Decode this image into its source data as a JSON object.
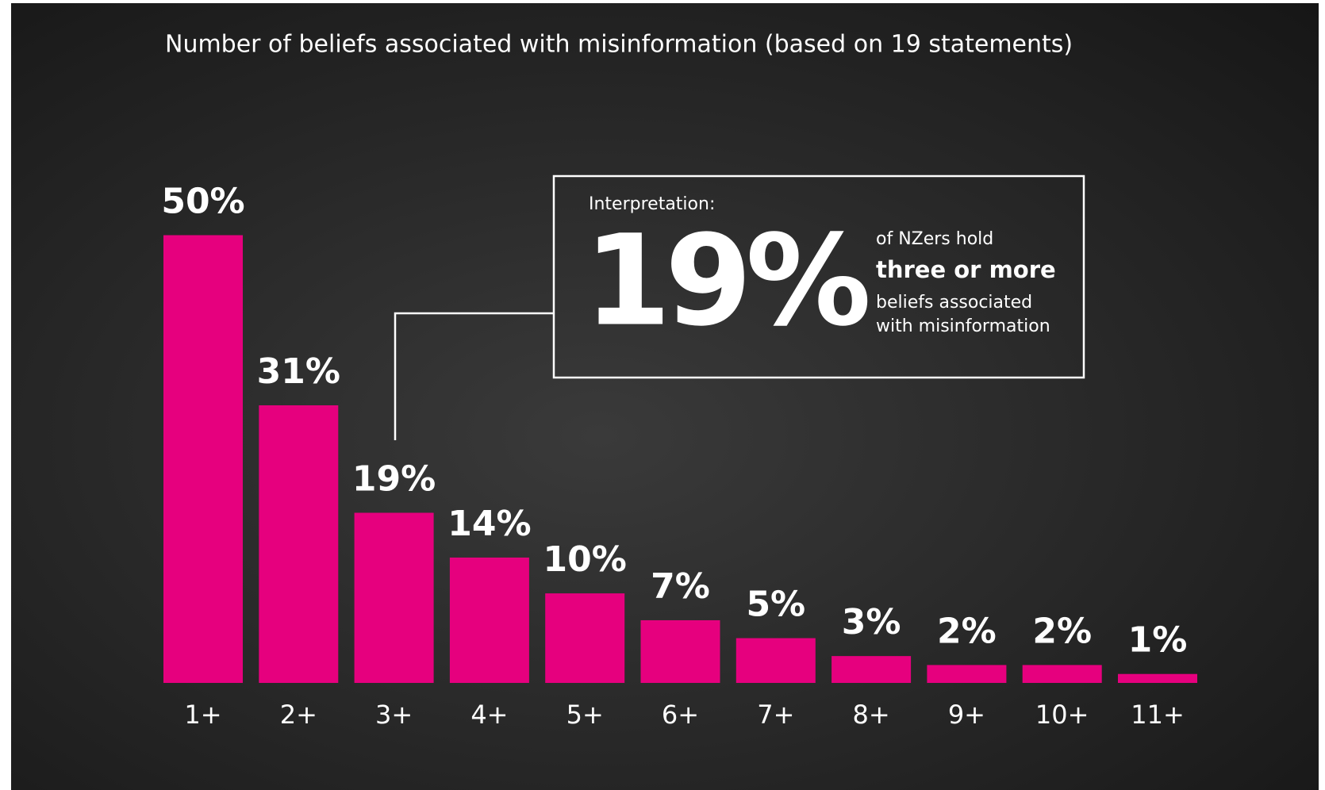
{
  "chart_data": {
    "type": "bar",
    "title": "Number of beliefs associated with misinformation (based on 19 statements)",
    "categories": [
      "1+",
      "2+",
      "3+",
      "4+",
      "5+",
      "6+",
      "7+",
      "8+",
      "9+",
      "10+",
      "11+"
    ],
    "values": [
      50,
      31,
      19,
      14,
      10,
      7,
      5,
      3,
      2,
      2,
      1
    ],
    "value_labels": [
      "50%",
      "31%",
      "19%",
      "14%",
      "10%",
      "7%",
      "5%",
      "3%",
      "2%",
      "2%",
      "1%"
    ],
    "color": "#e6007e",
    "annotation": {
      "heading": "Interpretation:",
      "figure": "19%",
      "lines": [
        "of NZers hold",
        "three or more",
        "beliefs associated",
        "with misinformation"
      ]
    }
  }
}
